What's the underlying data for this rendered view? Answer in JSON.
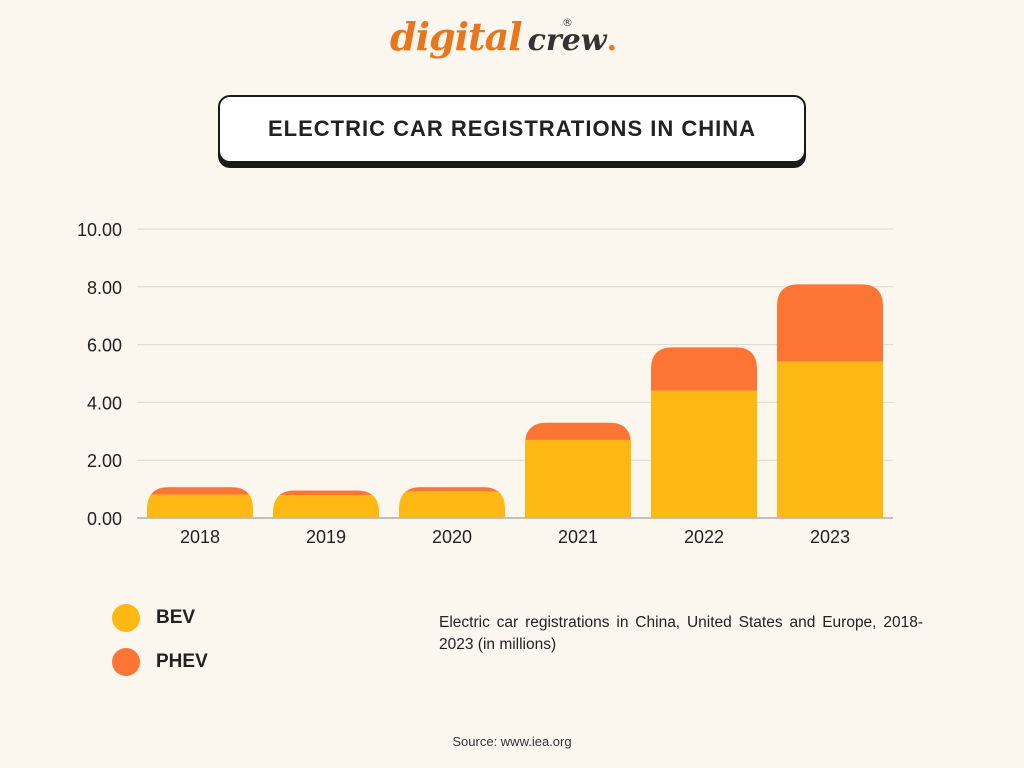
{
  "logo": {
    "word1": "digital",
    "word2": "crew",
    "dot": ".",
    "registered": "®"
  },
  "colors": {
    "bev": "#fdb813",
    "phev": "#fd7534",
    "background": "#fcf7ee",
    "grid": "#dcd8d0"
  },
  "chart_data": {
    "type": "bar",
    "stacked": true,
    "title": "ELECTRIC CAR REGISTRATIONS IN CHINA",
    "xlabel": "",
    "ylabel": "",
    "categories": [
      "2018",
      "2019",
      "2020",
      "2021",
      "2022",
      "2023"
    ],
    "series": [
      {
        "name": "BEV",
        "values": [
          0.81,
          0.79,
          0.92,
          2.7,
          4.41,
          5.41
        ]
      },
      {
        "name": "PHEV",
        "values": [
          0.26,
          0.16,
          0.15,
          0.6,
          1.5,
          2.68
        ]
      }
    ],
    "ylim": [
      0,
      10
    ],
    "yticks": [
      "0.00",
      "2.00",
      "4.00",
      "6.00",
      "8.00",
      "10.00"
    ],
    "grid": true,
    "legend": "bottom-left",
    "description": "Electric car registrations in China, United States and Europe, 2018-2023 (in millions)",
    "source": "Source: www.iea.org"
  }
}
